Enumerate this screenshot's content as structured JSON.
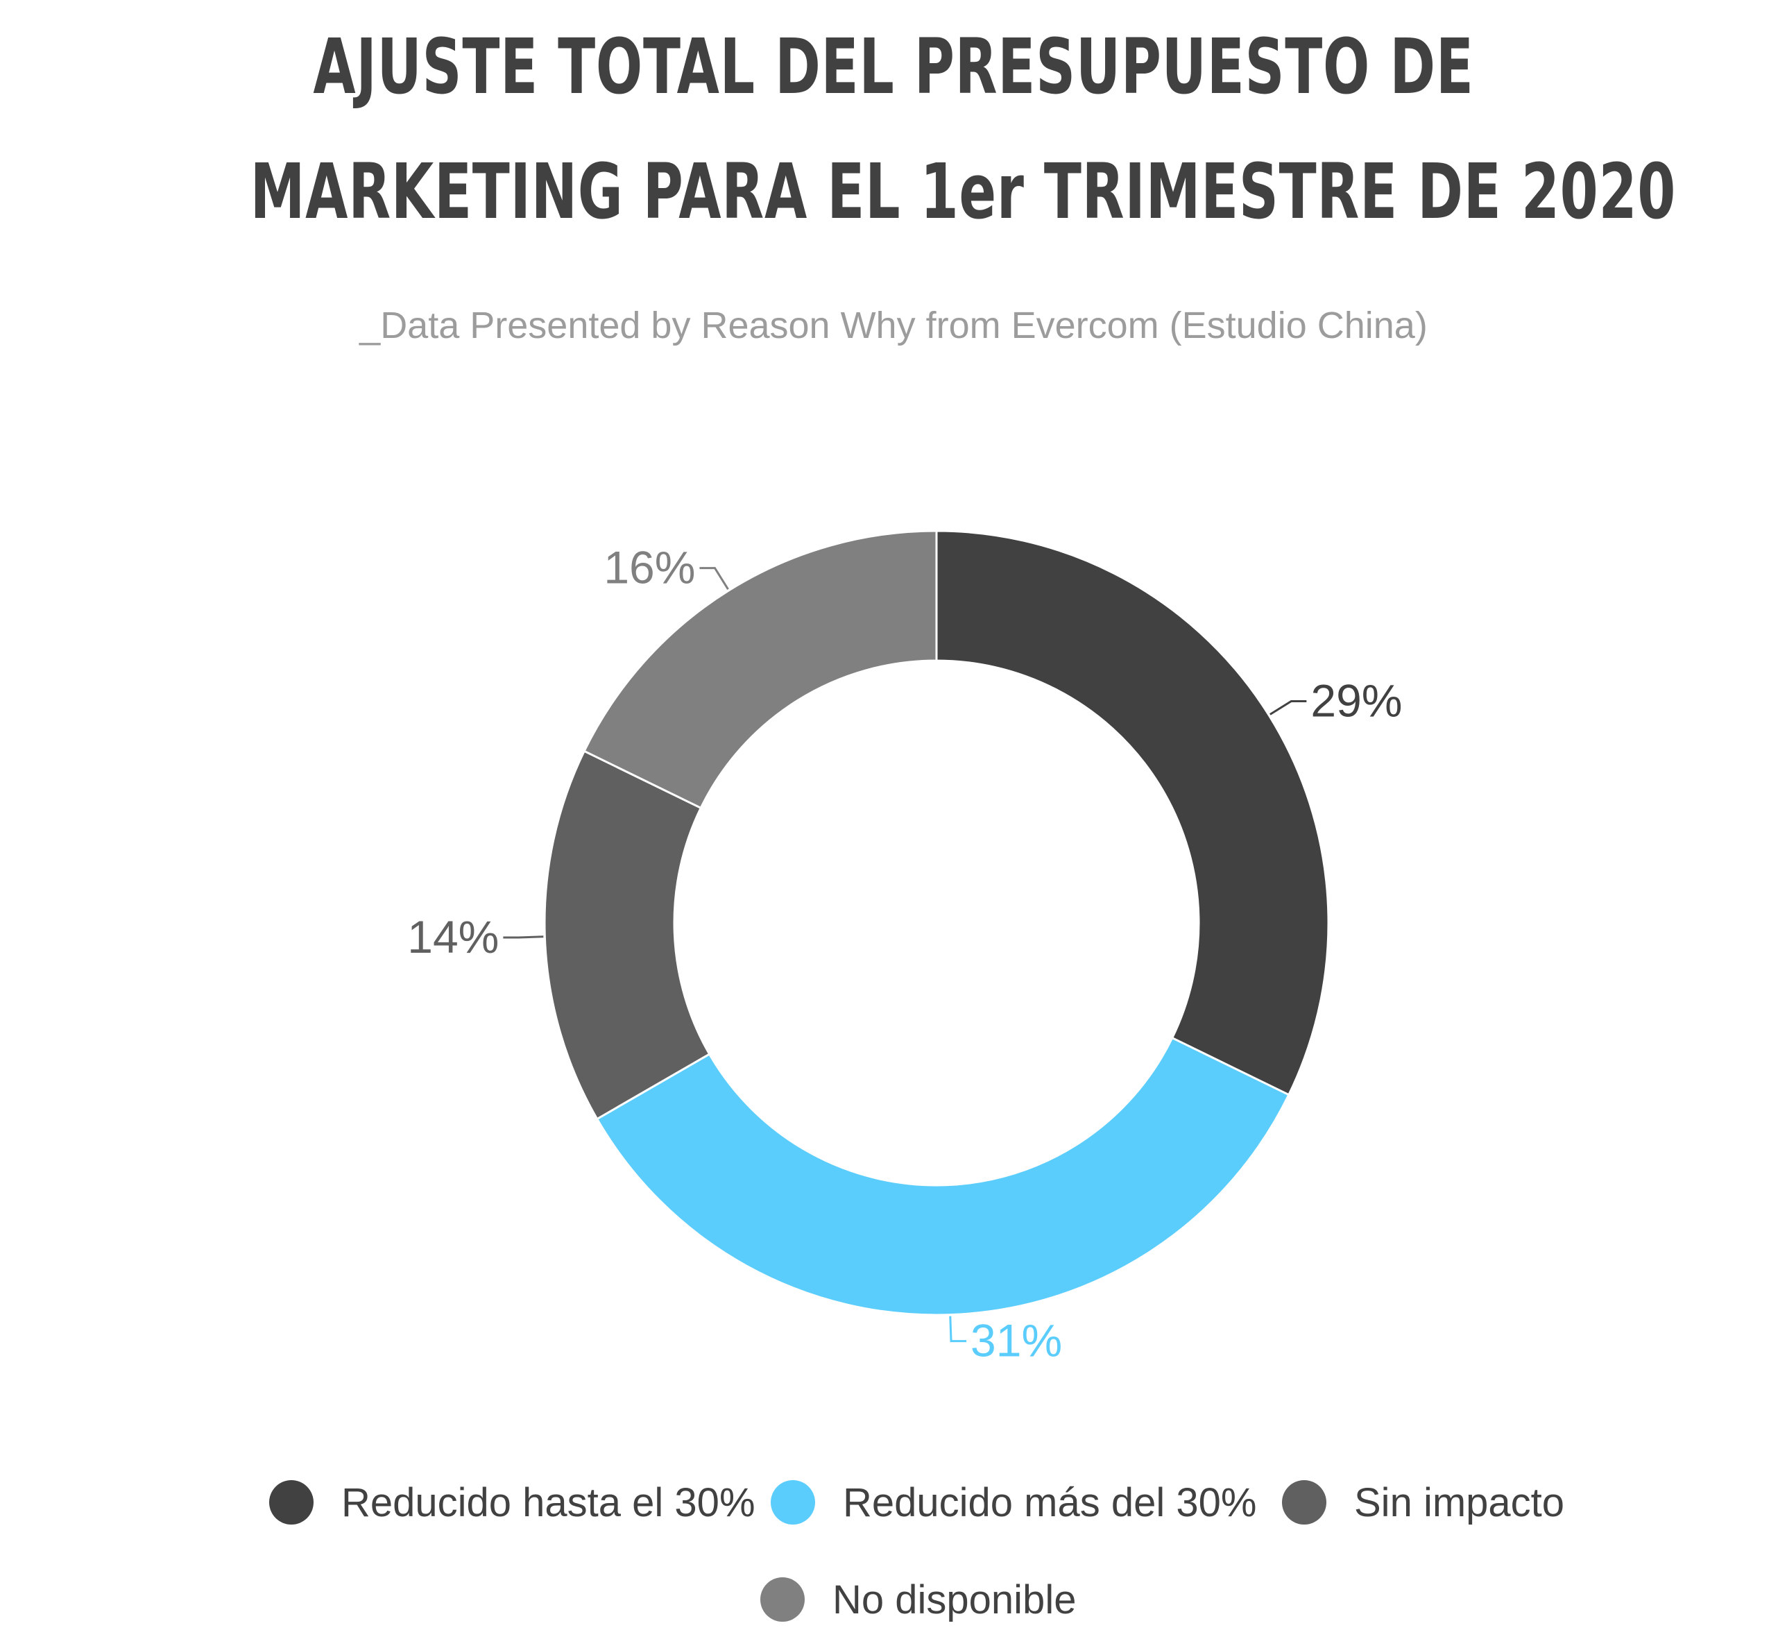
{
  "chart_data": {
    "type": "pie",
    "title": "AJUSTE TOTAL DEL PRESUPUESTO DE MARKETING PARA EL 1er TRIMESTRE DE 2020",
    "title_lines": [
      "AJUSTE TOTAL DEL PRESUPUESTO DE",
      "MARKETING PARA EL 1er TRIMESTRE DE 2020"
    ],
    "subtitle": "_Data Presented by Reason Why from Evercom (Estudio China)",
    "donut": true,
    "legend_position": "bottom",
    "categories": [
      "Reducido hasta el 30%",
      "Reducido más del 30%",
      "Sin impacto",
      "No disponible"
    ],
    "values": [
      29,
      31,
      14,
      16
    ],
    "value_labels": [
      "29%",
      "31%",
      "14%",
      "16%"
    ],
    "colors": [
      "#414141",
      "#5bcdfd",
      "#606060",
      "#808080"
    ],
    "label_colors": [
      "#414141",
      "#5bcdfd",
      "#606060",
      "#808080"
    ]
  }
}
